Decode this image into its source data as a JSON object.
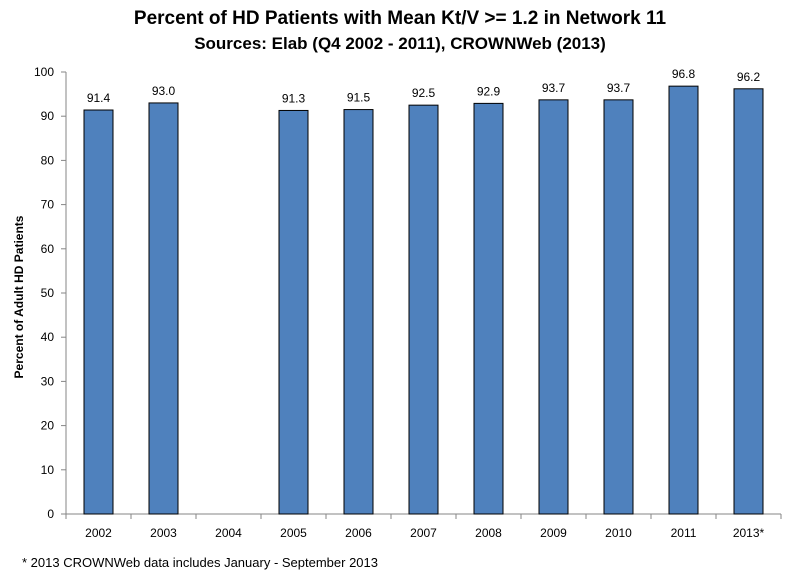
{
  "chart_data": {
    "type": "bar",
    "title": "Percent of HD Patients with Mean Kt/V >= 1.2 in Network 11",
    "subtitle": "Sources:  Elab (Q4 2002 - 2011), CROWNWeb (2013)",
    "xlabel": "",
    "ylabel": "Percent of Adult HD Patients",
    "ylim": [
      0,
      100
    ],
    "yticks": [
      0,
      10,
      20,
      30,
      40,
      50,
      60,
      70,
      80,
      90,
      100
    ],
    "categories": [
      "2002",
      "2003",
      "2004",
      "2005",
      "2006",
      "2007",
      "2008",
      "2009",
      "2010",
      "2011",
      "2013*"
    ],
    "values": [
      91.4,
      93.0,
      null,
      91.3,
      91.5,
      92.5,
      92.9,
      93.7,
      93.7,
      96.8,
      96.2
    ],
    "value_labels": [
      "91.4",
      "93.0",
      "",
      "91.3",
      "91.5",
      "92.5",
      "92.9",
      "93.7",
      "93.7",
      "96.8",
      "96.2"
    ],
    "bar_color": "#4f81bd",
    "bar_edge_color": "#000000",
    "grid": false,
    "legend": false
  },
  "footnote": "* 2013 CROWNWeb data includes January - September 2013"
}
